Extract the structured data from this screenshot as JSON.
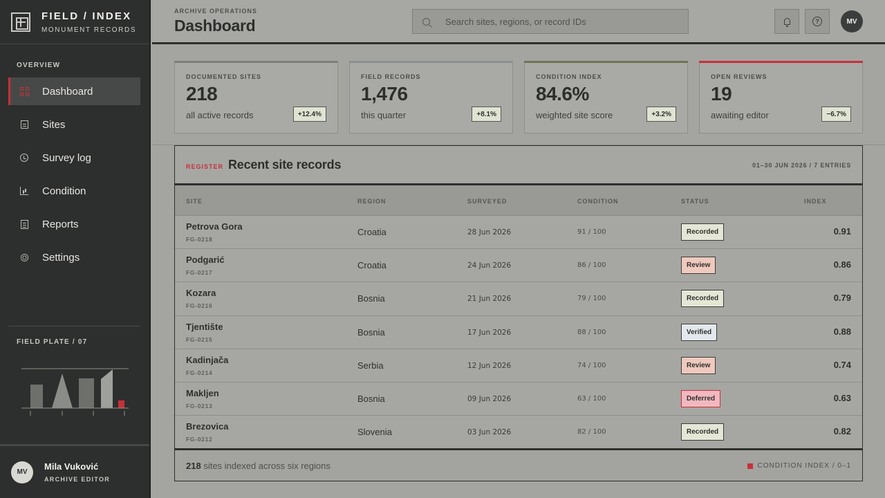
{
  "brand": {
    "title": "FIELD / INDEX",
    "subtitle": "MONUMENT RECORDS"
  },
  "sidebar": {
    "section_label": "OVERVIEW",
    "items": [
      {
        "label": "Dashboard",
        "icon": "grid-icon",
        "active": true
      },
      {
        "label": "Sites",
        "icon": "list-icon"
      },
      {
        "label": "Survey log",
        "icon": "clock-icon"
      },
      {
        "label": "Condition",
        "icon": "bar-chart-icon"
      },
      {
        "label": "Reports",
        "icon": "report-icon"
      },
      {
        "label": "Settings",
        "icon": "sun-icon"
      }
    ],
    "plate_label": "FIELD PLATE / 07"
  },
  "user": {
    "initials": "MV",
    "name": "Mila Vuković",
    "role": "ARCHIVE EDITOR"
  },
  "header": {
    "eyebrow": "ARCHIVE OPERATIONS",
    "title": "Dashboard",
    "search_placeholder": "Search sites, regions, or record IDs",
    "avatar_initials": "MV",
    "help_glyph": "?"
  },
  "kpis": [
    {
      "label": "DOCUMENTED SITES",
      "value": "218",
      "sub": "all active records",
      "delta": "+12.4%"
    },
    {
      "label": "FIELD RECORDS",
      "value": "1,476",
      "sub": "this quarter",
      "delta": "+8.1%"
    },
    {
      "label": "CONDITION INDEX",
      "value": "84.6%",
      "sub": "weighted site score",
      "delta": "+3.2%"
    },
    {
      "label": "OPEN REVIEWS",
      "value": "19",
      "sub": "awaiting editor",
      "delta": "−6.7%"
    }
  ],
  "table": {
    "tag": "REGISTER",
    "title": "Recent site records",
    "meta": "01–30 JUN 2026 / 7 ENTRIES",
    "columns": [
      "SITE",
      "REGION",
      "SURVEYED",
      "CONDITION",
      "STATUS",
      "INDEX"
    ],
    "rows": [
      {
        "site": "Petrova Gora",
        "id": "FG-0218",
        "region": "Croatia",
        "surveyed": "28 Jun 2026",
        "condition": "91 / 100",
        "status": "Recorded",
        "index": "0.91"
      },
      {
        "site": "Podgarić",
        "id": "FG-0217",
        "region": "Croatia",
        "surveyed": "24 Jun 2026",
        "condition": "86 / 100",
        "status": "Review",
        "index": "0.86"
      },
      {
        "site": "Kozara",
        "id": "FG-0216",
        "region": "Bosnia",
        "surveyed": "21 Jun 2026",
        "condition": "79 / 100",
        "status": "Recorded",
        "index": "0.79"
      },
      {
        "site": "Tjentište",
        "id": "FG-0215",
        "region": "Bosnia",
        "surveyed": "17 Jun 2026",
        "condition": "88 / 100",
        "status": "Verified",
        "index": "0.88"
      },
      {
        "site": "Kadinjača",
        "id": "FG-0214",
        "region": "Serbia",
        "surveyed": "12 Jun 2026",
        "condition": "74 / 100",
        "status": "Review",
        "index": "0.74"
      },
      {
        "site": "Makljen",
        "id": "FG-0213",
        "region": "Bosnia",
        "surveyed": "09 Jun 2026",
        "condition": "63 / 100",
        "status": "Deferred",
        "index": "0.63"
      },
      {
        "site": "Brezovica",
        "id": "FG-0212",
        "region": "Slovenia",
        "surveyed": "03 Jun 2026",
        "condition": "82 / 100",
        "status": "Recorded",
        "index": "0.82"
      }
    ],
    "footer_count": "218",
    "footer_text": " sites indexed across six regions",
    "legend": "CONDITION INDEX / 0–1"
  },
  "colors": {
    "accent": "#c8303a",
    "sidebar_bg": "#2d2f2e",
    "status_recorded": "#e4e7d6",
    "status_review": "#efc9bd",
    "status_verified": "#e3e8ee",
    "status_deferred": "#f2b8c0"
  }
}
